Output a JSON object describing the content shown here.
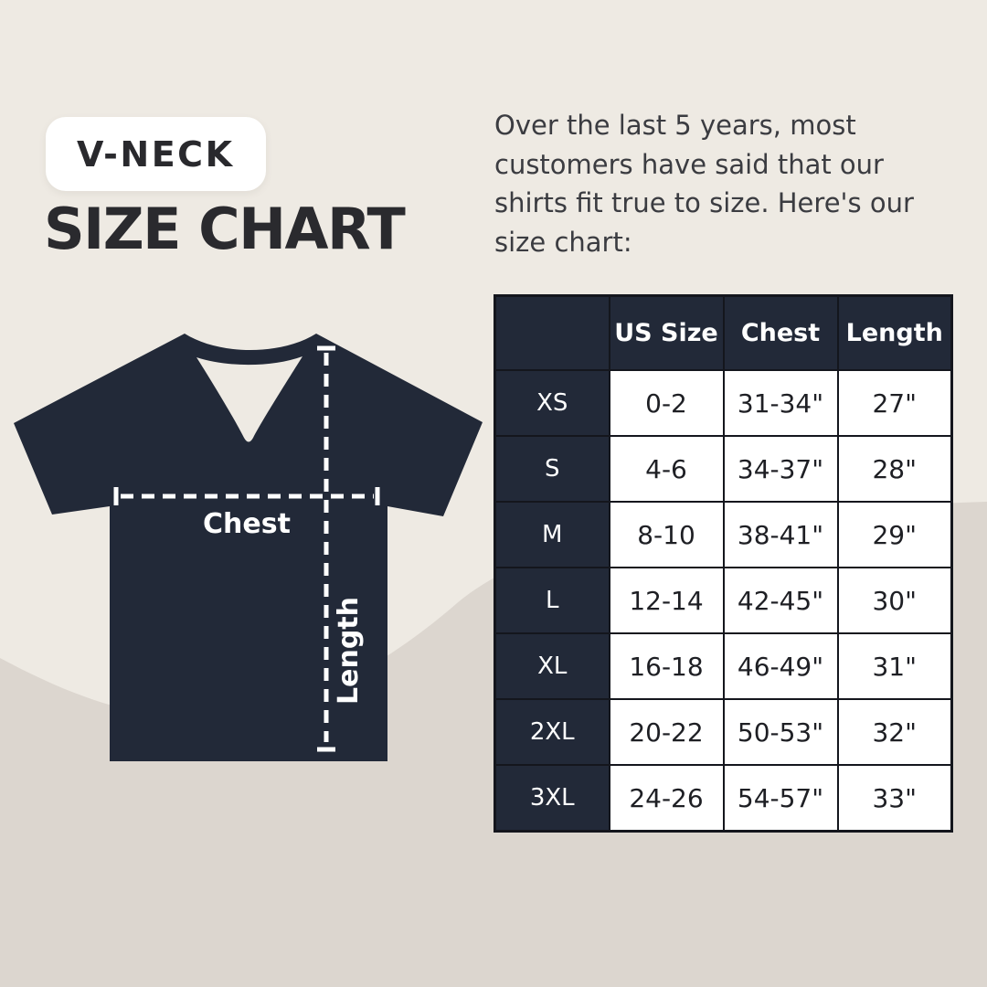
{
  "colors": {
    "background_top": "#eeeae3",
    "background_bottom": "#dcd6cf",
    "navy": "#222938",
    "cell_white": "#ffffff",
    "ink": "#2a2a2e"
  },
  "header": {
    "badge_label": "V-NECK",
    "title": "SIZE CHART",
    "intro": "Over the last 5 years, most customers have said that our shirts fit true to size. Here's our size chart:"
  },
  "diagram": {
    "chest_label": "Chest",
    "length_label": "Length"
  },
  "chart_data": {
    "type": "table",
    "title": "V-NECK SIZE CHART",
    "columns": [
      "",
      "US Size",
      "Chest",
      "Length"
    ],
    "rows": [
      [
        "XS",
        "0-2",
        "31-34\"",
        "27\""
      ],
      [
        "S",
        "4-6",
        "34-37\"",
        "28\""
      ],
      [
        "M",
        "8-10",
        "38-41\"",
        "29\""
      ],
      [
        "L",
        "12-14",
        "42-45\"",
        "30\""
      ],
      [
        "XL",
        "16-18",
        "46-49\"",
        "31\""
      ],
      [
        "2XL",
        "20-22",
        "50-53\"",
        "32\""
      ],
      [
        "3XL",
        "24-26",
        "54-57\"",
        "33\""
      ]
    ]
  }
}
